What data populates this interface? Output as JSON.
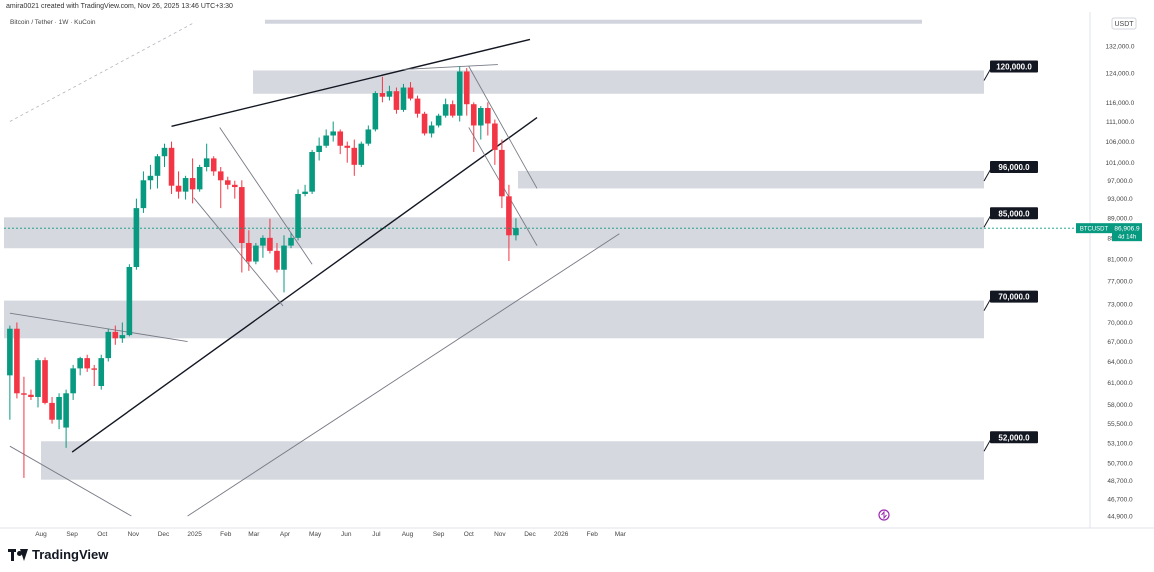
{
  "header": {
    "author_line": "amira0021 created with TradingView.com, Nov 26, 2025 13:46 UTC+3:30",
    "symbol_line": "Bitcoin / Tether · 1W · KuCoin"
  },
  "brand": {
    "name": "TradingView"
  },
  "chart_data": {
    "type": "candlestick",
    "currency_label": "USDT",
    "price_scale": "log",
    "y_ticks": [
      132000,
      124000,
      116000,
      111000,
      106000,
      101000,
      97000,
      93000,
      89000,
      85000,
      81000,
      77000,
      73000,
      70000,
      67000,
      64000,
      61000,
      58000,
      55500,
      53100,
      50700,
      48700,
      46700,
      44900
    ],
    "y_tick_labels": [
      "132,000.0",
      "124,000.0",
      "116,000.0",
      "111,000.0",
      "106,000.0",
      "101,000.0",
      "97,000.0",
      "93,000.0",
      "89,000.0",
      "85,000.0",
      "81,000.0",
      "77,000.0",
      "73,000.0",
      "70,000.0",
      "67,000.0",
      "64,000.0",
      "61,000.0",
      "58,000.0",
      "55,500.0",
      "53,100.0",
      "50,700.0",
      "48,700.0",
      "46,700.0",
      "44,900.0"
    ],
    "x_labels": [
      "Aug",
      "Sep",
      "Oct",
      "Nov",
      "Dec",
      "2025",
      "Feb",
      "Mar",
      "Apr",
      "May",
      "Jun",
      "Jul",
      "Aug",
      "Sep",
      "Oct",
      "Nov",
      "Dec",
      "2026",
      "Feb",
      "Mar"
    ],
    "x_dates": [
      "2024-08-01",
      "2024-09-01",
      "2024-10-01",
      "2024-11-01",
      "2024-12-01",
      "2025-01-01",
      "2025-02-01",
      "2025-03-01",
      "2025-04-01",
      "2025-05-01",
      "2025-06-01",
      "2025-07-01",
      "2025-08-01",
      "2025-09-01",
      "2025-10-01",
      "2025-11-01",
      "2025-12-01",
      "2026-01-01",
      "2026-02-01",
      "2026-03-01"
    ],
    "current_price": {
      "symbol": "BTCUSDT",
      "value": "86,906.9",
      "countdown": "4d 14h",
      "price": 86906.9,
      "color": "#089981"
    },
    "zones": [
      {
        "label": "120,000.0",
        "low": 118300,
        "high": 124800
      },
      {
        "label": "96,000.0",
        "low": 95200,
        "high": 99100
      },
      {
        "label": "85,000.0",
        "low": 83000,
        "high": 89100
      },
      {
        "label": "70,000.0",
        "low": 67500,
        "high": 73600
      },
      {
        "label": "52,000.0",
        "low": 48800,
        "high": 53300
      }
    ],
    "top_zone_lines": [
      {
        "low": 139000,
        "high": 140200
      }
    ],
    "trendlines": [
      {
        "kind": "black",
        "from": [
          "2024-12-09",
          109800
        ],
        "to": [
          "2025-12-01",
          134000
        ]
      },
      {
        "kind": "black",
        "from": [
          "2024-09-01",
          52000
        ],
        "to": [
          "2025-12-08",
          112000
        ]
      },
      {
        "kind": "gray",
        "from": [
          "2024-07-01",
          71500
        ],
        "to": [
          "2024-12-25",
          67000
        ]
      },
      {
        "kind": "gray",
        "from": [
          "2024-07-01",
          52700
        ],
        "to": [
          "2024-10-30",
          44900
        ]
      },
      {
        "kind": "gray",
        "from": [
          "2024-12-25",
          44900
        ],
        "to": [
          "2026-02-28",
          85800
        ]
      },
      {
        "kind": "gray",
        "from": [
          "2025-01-26",
          109500
        ],
        "to": [
          "2025-04-28",
          80000
        ]
      },
      {
        "kind": "gray",
        "from": [
          "2024-12-31",
          93200
        ],
        "to": [
          "2025-03-30",
          72700
        ]
      },
      {
        "kind": "gray",
        "from": [
          "2025-07-28",
          125100
        ],
        "to": [
          "2025-10-30",
          126500
        ]
      },
      {
        "kind": "gray",
        "from": [
          "2025-10-01",
          126000
        ],
        "to": [
          "2025-12-08",
          95200
        ]
      },
      {
        "kind": "gray",
        "from": [
          "2025-10-01",
          109500
        ],
        "to": [
          "2025-12-08",
          83500
        ]
      },
      {
        "kind": "dashed",
        "from": [
          "2024-07-01",
          111000
        ],
        "to": [
          "2024-12-30",
          139000
        ]
      }
    ],
    "up_color": "#089981",
    "down_color": "#f23645",
    "candles": [
      [
        "2024-07-01",
        62000,
        69500,
        56000,
        69000
      ],
      [
        "2024-07-08",
        69000,
        70000,
        58800,
        59500
      ],
      [
        "2024-07-15",
        59500,
        61800,
        49000,
        59300
      ],
      [
        "2024-07-22",
        59300,
        60000,
        58600,
        59000
      ],
      [
        "2024-07-29",
        59000,
        64500,
        57600,
        64200
      ],
      [
        "2024-08-05",
        64200,
        64600,
        58000,
        58200
      ],
      [
        "2024-08-12",
        58200,
        59000,
        55500,
        56000
      ],
      [
        "2024-08-19",
        56000,
        59500,
        54800,
        59000
      ],
      [
        "2024-08-26",
        55000,
        60000,
        52500,
        59500
      ],
      [
        "2024-09-02",
        59500,
        63500,
        58600,
        63000
      ],
      [
        "2024-09-09",
        63000,
        64700,
        62000,
        64500
      ],
      [
        "2024-09-16",
        64500,
        65000,
        62500,
        63000
      ],
      [
        "2024-09-23",
        63000,
        63500,
        60500,
        62800
      ],
      [
        "2024-09-30",
        60500,
        65000,
        60000,
        64500
      ],
      [
        "2024-10-07",
        64500,
        69000,
        64000,
        68500
      ],
      [
        "2024-10-14",
        68500,
        69500,
        66500,
        67500
      ],
      [
        "2024-10-21",
        67500,
        70000,
        66800,
        68000
      ],
      [
        "2024-10-28",
        68000,
        80000,
        67800,
        79500
      ],
      [
        "2024-11-04",
        79500,
        93000,
        79000,
        91000
      ],
      [
        "2024-11-11",
        91000,
        99000,
        90000,
        97000
      ],
      [
        "2024-11-18",
        97000,
        100500,
        95000,
        98000
      ],
      [
        "2024-11-25",
        98000,
        103000,
        95200,
        102500
      ],
      [
        "2024-12-02",
        102500,
        105500,
        100000,
        104500
      ],
      [
        "2024-12-09",
        104500,
        106000,
        94000,
        95800
      ],
      [
        "2024-12-16",
        95800,
        99000,
        93000,
        94500
      ],
      [
        "2024-12-23",
        94500,
        98000,
        92800,
        97500
      ],
      [
        "2024-12-30",
        97500,
        102000,
        92000,
        95000
      ],
      [
        "2025-01-06",
        95000,
        100500,
        94500,
        100000
      ],
      [
        "2025-01-13",
        100000,
        105500,
        99000,
        102000
      ],
      [
        "2025-01-20",
        102000,
        102500,
        98000,
        99000
      ],
      [
        "2025-01-27",
        99000,
        100000,
        91000,
        97000
      ],
      [
        "2025-02-03",
        97000,
        97800,
        95000,
        96000
      ],
      [
        "2025-02-10",
        96000,
        96900,
        93000,
        95500
      ],
      [
        "2025-02-17",
        95500,
        97000,
        78500,
        84000
      ],
      [
        "2025-02-24",
        84000,
        86500,
        78800,
        80500
      ],
      [
        "2025-03-03",
        80500,
        84000,
        80000,
        83500
      ],
      [
        "2025-03-10",
        83500,
        85500,
        81200,
        85000
      ],
      [
        "2025-03-17",
        85000,
        88800,
        82000,
        82500
      ],
      [
        "2025-03-24",
        82500,
        84000,
        78500,
        79000
      ],
      [
        "2025-03-31",
        79000,
        85500,
        75000,
        83500
      ],
      [
        "2025-04-07",
        83500,
        86000,
        83000,
        85000
      ],
      [
        "2025-04-14",
        85000,
        95000,
        84500,
        94000
      ],
      [
        "2025-04-21",
        94000,
        96000,
        93500,
        94500
      ],
      [
        "2025-04-28",
        94500,
        104000,
        94000,
        103500
      ],
      [
        "2025-05-05",
        103500,
        107000,
        101500,
        105000
      ],
      [
        "2025-05-12",
        105000,
        109000,
        104500,
        107500
      ],
      [
        "2025-05-19",
        107500,
        111000,
        106000,
        108500
      ],
      [
        "2025-05-26",
        108500,
        109000,
        103000,
        105000
      ],
      [
        "2025-06-02",
        105000,
        106000,
        101000,
        104500
      ],
      [
        "2025-06-09",
        104500,
        106500,
        98000,
        100500
      ],
      [
        "2025-06-16",
        100500,
        106000,
        100000,
        105500
      ],
      [
        "2025-06-23",
        105500,
        110000,
        105000,
        109000
      ],
      [
        "2025-06-30",
        109000,
        119000,
        108500,
        118500
      ],
      [
        "2025-07-07",
        118500,
        123000,
        116000,
        117500
      ],
      [
        "2025-07-14",
        117500,
        120500,
        116500,
        119000
      ],
      [
        "2025-07-21",
        119000,
        120000,
        113000,
        114000
      ],
      [
        "2025-07-28",
        114000,
        121000,
        113500,
        120000
      ],
      [
        "2025-08-04",
        120000,
        121500,
        116500,
        117000
      ],
      [
        "2025-08-11",
        117000,
        117800,
        112000,
        113000
      ],
      [
        "2025-08-18",
        113000,
        113500,
        107500,
        108000
      ],
      [
        "2025-08-25",
        108000,
        111000,
        107000,
        110000
      ],
      [
        "2025-09-01",
        110000,
        113000,
        109500,
        112500
      ],
      [
        "2025-09-08",
        112500,
        117000,
        112000,
        115500
      ],
      [
        "2025-09-15",
        115500,
        116500,
        112000,
        112500
      ],
      [
        "2025-09-22",
        112500,
        126000,
        111000,
        124500
      ],
      [
        "2025-09-29",
        124500,
        125500,
        112500,
        115500
      ],
      [
        "2025-10-06",
        115500,
        116000,
        103500,
        110000
      ],
      [
        "2025-10-13",
        110000,
        115000,
        106500,
        114500
      ],
      [
        "2025-10-20",
        114500,
        116000,
        107500,
        110500
      ],
      [
        "2025-10-27",
        110500,
        111500,
        100500,
        104000
      ],
      [
        "2025-11-03",
        104000,
        106500,
        91000,
        93500
      ],
      [
        "2025-11-10",
        93500,
        96000,
        80600,
        85500
      ],
      [
        "2025-11-17",
        85500,
        88900,
        84500,
        86906.9
      ]
    ]
  }
}
